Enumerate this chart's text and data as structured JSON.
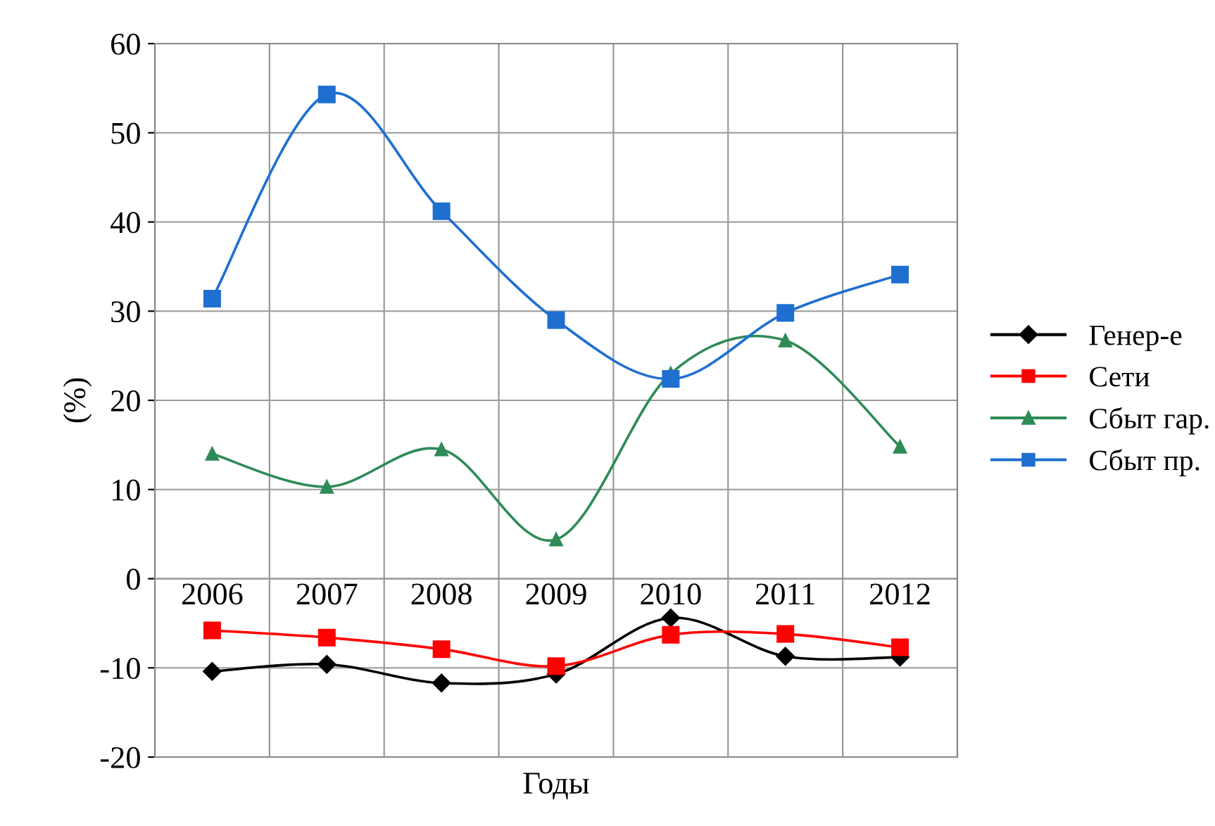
{
  "chart_data": {
    "type": "line",
    "xlabel": "Годы",
    "ylabel": "(%)",
    "categories": [
      "2006",
      "2007",
      "2008",
      "2009",
      "2010",
      "2011",
      "2012"
    ],
    "series": [
      {
        "name": "Генер-е",
        "color": "#000000",
        "marker": "diamond",
        "values": [
          -10.4,
          -9.6,
          -11.7,
          -10.7,
          -4.4,
          -8.7,
          -8.8
        ]
      },
      {
        "name": "Сети",
        "color": "#ff0000",
        "marker": "square",
        "values": [
          -5.8,
          -6.6,
          -7.9,
          -9.8,
          -6.3,
          -6.2,
          -7.7
        ]
      },
      {
        "name": "Сбыт гар.",
        "color": "#2e8b57",
        "marker": "triangle",
        "values": [
          14.0,
          10.3,
          14.5,
          4.4,
          23,
          26.7,
          14.8
        ]
      },
      {
        "name": "Сбыт пр.",
        "color": "#1f6fd1",
        "marker": "square",
        "values": [
          31.4,
          54.3,
          41.2,
          29.0,
          22.4,
          29.8,
          34.1
        ]
      }
    ],
    "ylim": [
      -20,
      60
    ],
    "yticks": [
      -20,
      -10,
      0,
      10,
      20,
      30,
      40,
      50,
      60
    ],
    "grid": true,
    "legend": "right",
    "line_style": "solid"
  }
}
